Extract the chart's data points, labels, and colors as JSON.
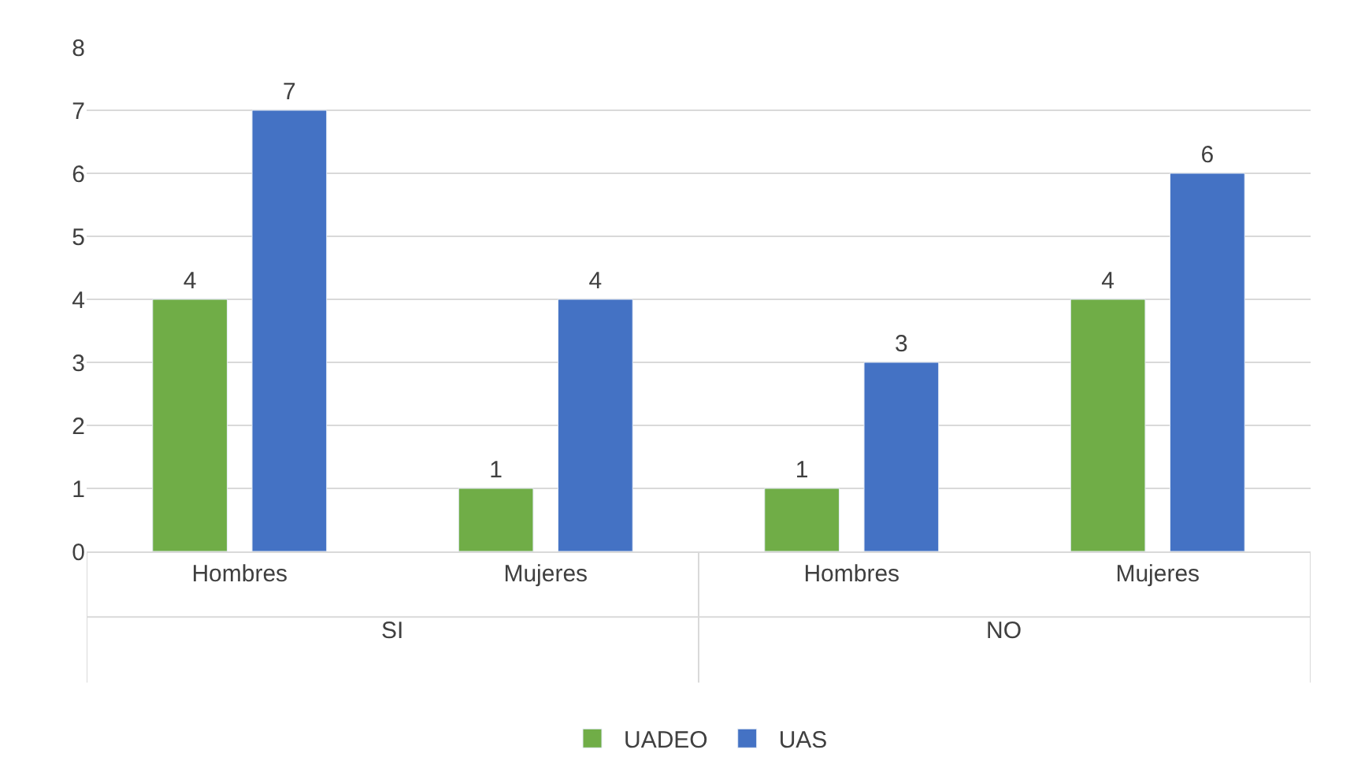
{
  "chart_data": {
    "type": "bar",
    "categories": [
      "Hombres",
      "Mujeres",
      "Hombres",
      "Mujeres"
    ],
    "series": [
      {
        "name": "UADEO",
        "color": "#70ad47",
        "values": [
          4,
          1,
          1,
          4
        ]
      },
      {
        "name": "UAS",
        "color": "#4472c4",
        "values": [
          7,
          4,
          3,
          6
        ]
      }
    ],
    "annotations": [
      "SI",
      "NO"
    ],
    "ylim": [
      0,
      8
    ],
    "yticks": [
      0,
      1,
      2,
      3,
      4,
      5,
      6,
      7,
      8
    ],
    "grid": "y",
    "legend": "bottom",
    "data_labels": true
  }
}
